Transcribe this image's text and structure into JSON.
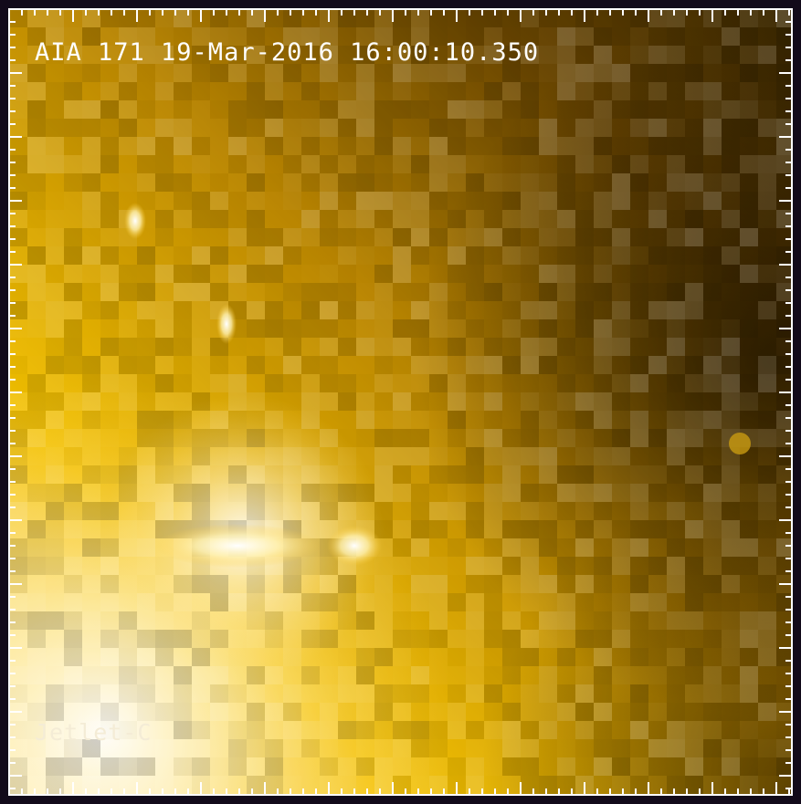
{
  "image": {
    "description_label": "AIA 171 19-Mar-2016 16:00:10.350",
    "footer_label": "Jetlet-C"
  },
  "colors": {
    "frame": "#120a1a",
    "bright": "#fff6d8",
    "mid": "#e8a800",
    "dark": "#3a2600",
    "text": "#ffffff"
  }
}
